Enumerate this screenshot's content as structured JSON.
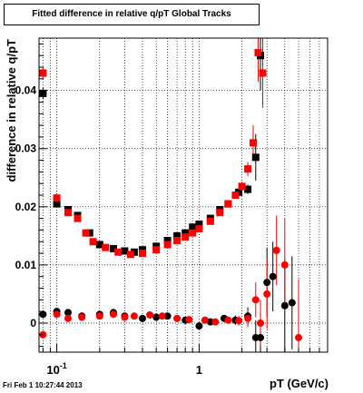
{
  "title": "Fitted difference in relative q/pT  Global Tracks",
  "timestamp": "Fri Feb  1 10:27:44 2013",
  "colors": {
    "series_black": "#000000",
    "series_red": "#ff0000",
    "grid": "#000000",
    "frame": "#000000"
  },
  "chart_data": {
    "type": "scatter",
    "title": "Fitted difference in relative q/pT  Global Tracks",
    "xlabel": "pT (GeV/c)",
    "ylabel": "difference in relative q/pT",
    "xscale": "log",
    "xlim": [
      0.075,
      8.0
    ],
    "ylim": [
      -0.005,
      0.049
    ],
    "grid": true,
    "xticks": [
      {
        "value": 0.1,
        "label": "10",
        "sup": "-1"
      },
      {
        "value": 1,
        "label": "1",
        "sup": ""
      }
    ],
    "yticks": [
      {
        "value": 0,
        "label": "0"
      },
      {
        "value": 0.01,
        "label": "0.01"
      },
      {
        "value": 0.02,
        "label": "0.02"
      },
      {
        "value": 0.03,
        "label": "0.03"
      },
      {
        "value": 0.04,
        "label": "0.04"
      }
    ],
    "series": [
      {
        "color": "#000000",
        "points": [
          {
            "x": 0.08,
            "y": 0.0395,
            "marker": "square",
            "err": 0.001
          },
          {
            "x": 0.1,
            "y": 0.0205,
            "marker": "square",
            "err": 0.0005
          },
          {
            "x": 0.12,
            "y": 0.0195,
            "marker": "square",
            "err": 0.0005
          },
          {
            "x": 0.14,
            "y": 0.0185,
            "marker": "square",
            "err": 0.0004
          },
          {
            "x": 0.17,
            "y": 0.0155,
            "marker": "square",
            "err": 0.0004
          },
          {
            "x": 0.2,
            "y": 0.0135,
            "marker": "square",
            "err": 0.0004
          },
          {
            "x": 0.25,
            "y": 0.0128,
            "marker": "square",
            "err": 0.0004
          },
          {
            "x": 0.3,
            "y": 0.0124,
            "marker": "square",
            "err": 0.0004
          },
          {
            "x": 0.35,
            "y": 0.0122,
            "marker": "square",
            "err": 0.0004
          },
          {
            "x": 0.4,
            "y": 0.0126,
            "marker": "square",
            "err": 0.0004
          },
          {
            "x": 0.5,
            "y": 0.0132,
            "marker": "square",
            "err": 0.0004
          },
          {
            "x": 0.6,
            "y": 0.0142,
            "marker": "square",
            "err": 0.0004
          },
          {
            "x": 0.7,
            "y": 0.015,
            "marker": "square",
            "err": 0.0004
          },
          {
            "x": 0.8,
            "y": 0.0155,
            "marker": "square",
            "err": 0.0004
          },
          {
            "x": 0.9,
            "y": 0.0165,
            "marker": "square",
            "err": 0.0005
          },
          {
            "x": 1.0,
            "y": 0.017,
            "marker": "square",
            "err": 0.0005
          },
          {
            "x": 1.2,
            "y": 0.018,
            "marker": "square",
            "err": 0.0005
          },
          {
            "x": 1.4,
            "y": 0.0195,
            "marker": "square",
            "err": 0.0005
          },
          {
            "x": 1.6,
            "y": 0.0205,
            "marker": "square",
            "err": 0.0005
          },
          {
            "x": 1.9,
            "y": 0.0225,
            "marker": "square",
            "err": 0.0006
          },
          {
            "x": 2.2,
            "y": 0.023,
            "marker": "square",
            "err": 0.0008
          },
          {
            "x": 2.5,
            "y": 0.0285,
            "marker": "square",
            "err": 0.004
          },
          {
            "x": 2.7,
            "y": 0.046,
            "marker": "square",
            "err": 0.006
          },
          {
            "x": 0.08,
            "y": 0.0015,
            "marker": "circle",
            "err": 0.0005
          },
          {
            "x": 0.1,
            "y": 0.002,
            "marker": "circle",
            "err": 0.0004
          },
          {
            "x": 0.12,
            "y": 0.0018,
            "marker": "circle",
            "err": 0.0004
          },
          {
            "x": 0.15,
            "y": 0.0012,
            "marker": "circle",
            "err": 0.0004
          },
          {
            "x": 0.2,
            "y": 0.0015,
            "marker": "circle",
            "err": 0.0004
          },
          {
            "x": 0.25,
            "y": 0.0018,
            "marker": "circle",
            "err": 0.0004
          },
          {
            "x": 0.3,
            "y": 0.0012,
            "marker": "circle",
            "err": 0.0004
          },
          {
            "x": 0.4,
            "y": 0.0008,
            "marker": "circle",
            "err": 0.0004
          },
          {
            "x": 0.5,
            "y": 0.001,
            "marker": "circle",
            "err": 0.0004
          },
          {
            "x": 0.6,
            "y": 0.0012,
            "marker": "circle",
            "err": 0.0004
          },
          {
            "x": 0.8,
            "y": 0.0005,
            "marker": "circle",
            "err": 0.0004
          },
          {
            "x": 1.0,
            "y": -0.0005,
            "marker": "circle",
            "err": 0.0005
          },
          {
            "x": 1.2,
            "y": 0.0002,
            "marker": "circle",
            "err": 0.0005
          },
          {
            "x": 1.5,
            "y": 0.0008,
            "marker": "circle",
            "err": 0.0006
          },
          {
            "x": 1.8,
            "y": 0.0005,
            "marker": "circle",
            "err": 0.0008
          },
          {
            "x": 2.2,
            "y": 0.0012,
            "marker": "circle",
            "err": 0.0015
          },
          {
            "x": 2.5,
            "y": -0.0025,
            "marker": "circle",
            "err": 0.003
          },
          {
            "x": 2.7,
            "y": -0.0025,
            "marker": "circle",
            "err": 0.004
          },
          {
            "x": 3.0,
            "y": 0.007,
            "marker": "circle",
            "err": 0.006
          },
          {
            "x": 3.3,
            "y": 0.008,
            "marker": "circle",
            "err": 0.006
          },
          {
            "x": 4.0,
            "y": 0.003,
            "marker": "circle",
            "err": 0.008
          },
          {
            "x": 4.5,
            "y": 0.0035,
            "marker": "circle",
            "err": 0.008
          }
        ]
      },
      {
        "color": "#ff0000",
        "points": [
          {
            "x": 0.08,
            "y": 0.043,
            "marker": "square",
            "err": 0.001
          },
          {
            "x": 0.1,
            "y": 0.0215,
            "marker": "square",
            "err": 0.0005
          },
          {
            "x": 0.12,
            "y": 0.019,
            "marker": "square",
            "err": 0.0005
          },
          {
            "x": 0.14,
            "y": 0.018,
            "marker": "square",
            "err": 0.0004
          },
          {
            "x": 0.16,
            "y": 0.0155,
            "marker": "square",
            "err": 0.0004
          },
          {
            "x": 0.18,
            "y": 0.014,
            "marker": "square",
            "err": 0.0004
          },
          {
            "x": 0.22,
            "y": 0.013,
            "marker": "square",
            "err": 0.0004
          },
          {
            "x": 0.27,
            "y": 0.0122,
            "marker": "square",
            "err": 0.0004
          },
          {
            "x": 0.33,
            "y": 0.0118,
            "marker": "square",
            "err": 0.0004
          },
          {
            "x": 0.4,
            "y": 0.012,
            "marker": "square",
            "err": 0.0004
          },
          {
            "x": 0.5,
            "y": 0.0126,
            "marker": "square",
            "err": 0.0004
          },
          {
            "x": 0.6,
            "y": 0.0135,
            "marker": "square",
            "err": 0.0004
          },
          {
            "x": 0.7,
            "y": 0.0142,
            "marker": "square",
            "err": 0.0004
          },
          {
            "x": 0.8,
            "y": 0.0148,
            "marker": "square",
            "err": 0.0004
          },
          {
            "x": 0.9,
            "y": 0.0155,
            "marker": "square",
            "err": 0.0005
          },
          {
            "x": 1.0,
            "y": 0.0162,
            "marker": "square",
            "err": 0.0005
          },
          {
            "x": 1.2,
            "y": 0.0175,
            "marker": "square",
            "err": 0.0005
          },
          {
            "x": 1.4,
            "y": 0.019,
            "marker": "square",
            "err": 0.0005
          },
          {
            "x": 1.6,
            "y": 0.0205,
            "marker": "square",
            "err": 0.0005
          },
          {
            "x": 1.8,
            "y": 0.022,
            "marker": "square",
            "err": 0.0006
          },
          {
            "x": 2.0,
            "y": 0.0235,
            "marker": "square",
            "err": 0.0008
          },
          {
            "x": 2.2,
            "y": 0.0265,
            "marker": "square",
            "err": 0.0012
          },
          {
            "x": 2.4,
            "y": 0.031,
            "marker": "square",
            "err": 0.003
          },
          {
            "x": 2.6,
            "y": 0.0465,
            "marker": "square",
            "err": 0.005
          },
          {
            "x": 2.8,
            "y": 0.043,
            "marker": "square",
            "err": 0.006
          },
          {
            "x": 0.08,
            "y": -0.002,
            "marker": "circle",
            "err": 0.0005
          },
          {
            "x": 0.1,
            "y": 0.0015,
            "marker": "circle",
            "err": 0.0004
          },
          {
            "x": 0.12,
            "y": 0.0008,
            "marker": "circle",
            "err": 0.0004
          },
          {
            "x": 0.15,
            "y": 0.001,
            "marker": "circle",
            "err": 0.0004
          },
          {
            "x": 0.2,
            "y": 0.0012,
            "marker": "circle",
            "err": 0.0004
          },
          {
            "x": 0.25,
            "y": 0.0015,
            "marker": "circle",
            "err": 0.0004
          },
          {
            "x": 0.3,
            "y": 0.001,
            "marker": "circle",
            "err": 0.0004
          },
          {
            "x": 0.35,
            "y": 0.0012,
            "marker": "circle",
            "err": 0.0004
          },
          {
            "x": 0.45,
            "y": 0.0014,
            "marker": "circle",
            "err": 0.0004
          },
          {
            "x": 0.55,
            "y": 0.0012,
            "marker": "circle",
            "err": 0.0004
          },
          {
            "x": 0.7,
            "y": 0.0008,
            "marker": "circle",
            "err": 0.0004
          },
          {
            "x": 0.85,
            "y": 0.0006,
            "marker": "circle",
            "err": 0.0004
          },
          {
            "x": 1.1,
            "y": 0.0005,
            "marker": "circle",
            "err": 0.0005
          },
          {
            "x": 1.3,
            "y": 0.0002,
            "marker": "circle",
            "err": 0.0005
          },
          {
            "x": 1.6,
            "y": 0.0005,
            "marker": "circle",
            "err": 0.0006
          },
          {
            "x": 1.9,
            "y": 0.0004,
            "marker": "circle",
            "err": 0.0008
          },
          {
            "x": 2.2,
            "y": 0.0008,
            "marker": "circle",
            "err": 0.0015
          },
          {
            "x": 2.5,
            "y": 0.004,
            "marker": "circle",
            "err": 0.003
          },
          {
            "x": 2.7,
            "y": 0.0,
            "marker": "circle",
            "err": 0.004
          },
          {
            "x": 3.0,
            "y": 0.005,
            "marker": "circle",
            "err": 0.006
          },
          {
            "x": 3.5,
            "y": 0.0125,
            "marker": "circle",
            "err": 0.006
          },
          {
            "x": 4.0,
            "y": 0.01,
            "marker": "circle",
            "err": 0.008
          },
          {
            "x": 5.0,
            "y": -0.0025,
            "marker": "circle",
            "err": 0.01
          }
        ]
      }
    ]
  }
}
